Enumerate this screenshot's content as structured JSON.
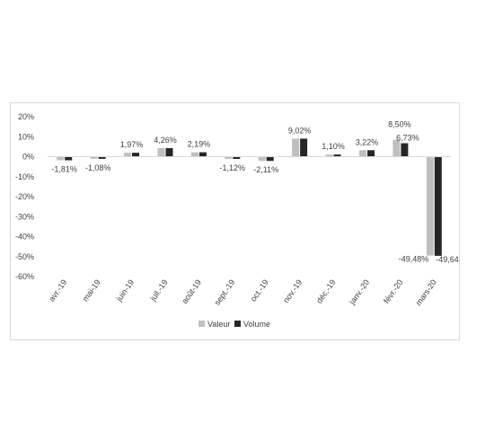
{
  "chart_data": {
    "type": "bar",
    "categories": [
      "avr.-19",
      "mai-19",
      "juin-19",
      "juil.-19",
      "août-19",
      "sept.-19",
      "oct.-19",
      "nov.-19",
      "déc.-19",
      "janv.-20",
      "févr.-20",
      "mars-20"
    ],
    "series": [
      {
        "name": "Valeur",
        "color": "#bfbfbf",
        "values": [
          -1.81,
          -1.08,
          1.97,
          4.26,
          2.19,
          -1.12,
          -2.11,
          9.02,
          1.1,
          3.22,
          8.5,
          -49.48
        ]
      },
      {
        "name": "Volume",
        "color": "#262626",
        "values": [
          -1.81,
          -1.08,
          1.97,
          4.26,
          2.19,
          -1.12,
          -2.11,
          9.02,
          1.1,
          3.22,
          6.73,
          -49.64
        ]
      }
    ],
    "data_labels": [
      {
        "text": "-1,81%",
        "category": "avr.-19",
        "series": "Valeur"
      },
      {
        "text": "-1,08%",
        "category": "mai-19",
        "series": "Valeur"
      },
      {
        "text": "1,97%",
        "category": "juin-19",
        "series": "Valeur"
      },
      {
        "text": "4,26%",
        "category": "juil.-19",
        "series": "Valeur"
      },
      {
        "text": "2,19%",
        "category": "août-19",
        "series": "Valeur"
      },
      {
        "text": "-1,12%",
        "category": "sept.-19",
        "series": "Valeur"
      },
      {
        "text": "-2,11%",
        "category": "oct.-19",
        "series": "Valeur"
      },
      {
        "text": "9,02%",
        "category": "nov.-19",
        "series": "Valeur"
      },
      {
        "text": "1,10%",
        "category": "déc.-19",
        "series": "Valeur"
      },
      {
        "text": "3,22%",
        "category": "janv.-20",
        "series": "Valeur"
      },
      {
        "text": "8,50%",
        "category": "févr.-20",
        "series": "Valeur"
      },
      {
        "text": "6,73%",
        "category": "févr.-20",
        "series": "Volume"
      },
      {
        "text": "-49,48%",
        "category": "mars-20",
        "series": "Valeur"
      },
      {
        "text": "-49,64%",
        "category": "mars-20",
        "series": "Volume"
      }
    ],
    "y_ticks": [
      {
        "value": 20,
        "label": "20%"
      },
      {
        "value": 10,
        "label": "10%"
      },
      {
        "value": 0,
        "label": "0%"
      },
      {
        "value": -10,
        "label": "-10%"
      },
      {
        "value": -20,
        "label": "-20%"
      },
      {
        "value": -30,
        "label": "-30%"
      },
      {
        "value": -40,
        "label": "-40%"
      },
      {
        "value": -50,
        "label": "-50%"
      },
      {
        "value": -60,
        "label": "-60%"
      }
    ],
    "ylim": [
      -60,
      20
    ],
    "grid": false,
    "legend_position": "bottom",
    "title": "",
    "xlabel": "",
    "ylabel": ""
  }
}
